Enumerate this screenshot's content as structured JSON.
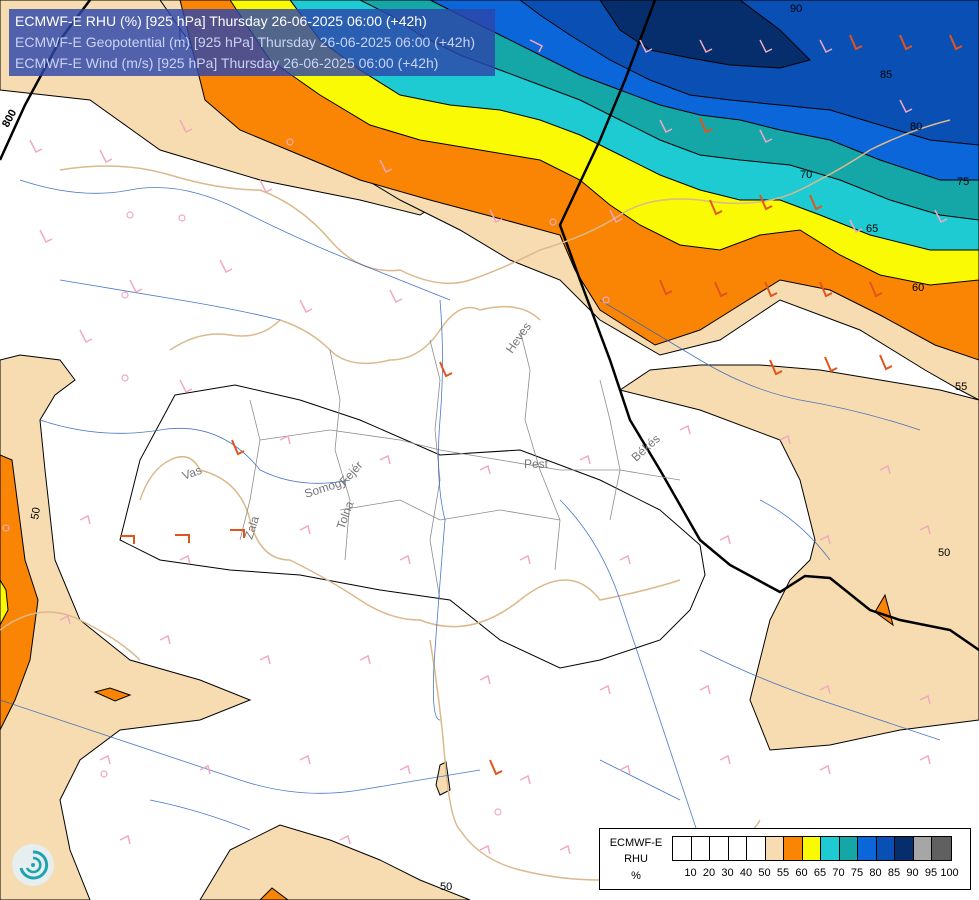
{
  "title_lines": [
    "ECMWF-E RHU (%) [925 hPa] Thursday 26-06-2025 06:00 (+42h)",
    "ECMWF-E Geopotential (m) [925 hPa] Thursday 26-06-2025 06:00 (+42h)",
    "ECMWF-E Wind (m/s) [925 hPa] Thursday 26-06-2025 06:00 (+42h)"
  ],
  "legend": {
    "model": "ECMWF-E",
    "variable": "RHU",
    "unit": "%",
    "colors": [
      "#ffffff",
      "#ffffff",
      "#ffffff",
      "#ffffff",
      "#ffffff",
      "#f6dcb0",
      "#fa8504",
      "#fafa04",
      "#1ecbd3",
      "#15a7a8",
      "#0a66d9",
      "#094fb4",
      "#062d6c",
      "#a6a6a6",
      "#606060"
    ],
    "ticks": [
      "10",
      "20",
      "30",
      "40",
      "50",
      "55",
      "60",
      "65",
      "70",
      "75",
      "80",
      "85",
      "90",
      "95",
      "100"
    ]
  },
  "contour_labels": {
    "geopotential": [
      "800"
    ],
    "rhu": [
      "50",
      "55",
      "60",
      "65",
      "70",
      "75",
      "80",
      "85",
      "90",
      "50",
      "50"
    ]
  },
  "place_labels": [
    "Heves",
    "Pest",
    "Békés",
    "Vas",
    "Zala",
    "Somogy",
    "Fejér",
    "Tolna"
  ],
  "icons": [
    "ecmwf-logo-icon"
  ]
}
